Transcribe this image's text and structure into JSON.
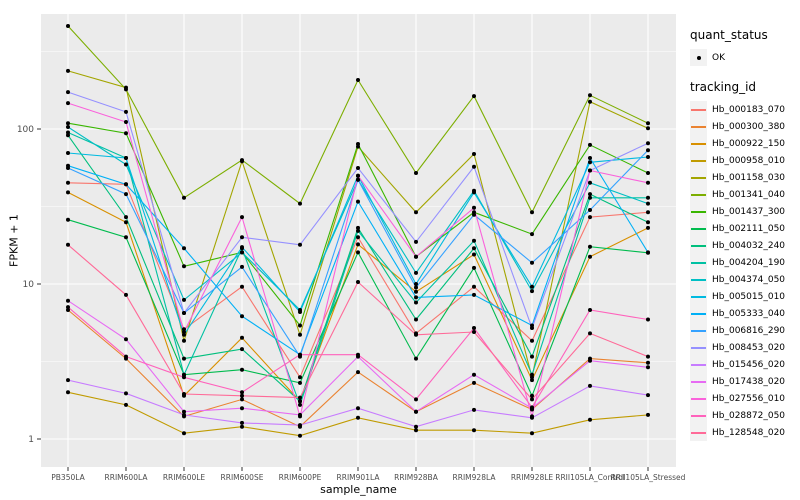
{
  "panel": {
    "background": "#EBEBEB",
    "grid_color": "#FFFFFF",
    "tick_color": "#333333",
    "tick_label_color": "#4D4D4D",
    "point_color": "#000000"
  },
  "chart_data": {
    "type": "line",
    "title": "",
    "xlabel": "sample_name",
    "ylabel": "FPKM + 1",
    "y_scale": "log10",
    "y_ticks": [
      1,
      10,
      100
    ],
    "y_range": [
      0.66,
      550
    ],
    "grid": true,
    "legend_position": "right",
    "categories": [
      "PB350LA",
      "RRIM600LA",
      "RRIM600LE",
      "RRIM600SE",
      "RRIM600PE",
      "RRIM901LA",
      "RRIM928BA",
      "RRIM928LA",
      "RRIM928LE",
      "RRII105LA_Control",
      "RRII105LA_Stressed"
    ],
    "legend": {
      "quant_status_title": "quant_status",
      "quant_status_items": [
        {
          "label": "OK",
          "marker": "point",
          "color": "#000000"
        }
      ],
      "tracking_title": "tracking_id"
    },
    "series": [
      {
        "name": "Hb_000183_070",
        "color": "#F8766D",
        "values": [
          45,
          44,
          5.1,
          9.6,
          2.5,
          20,
          4.8,
          9.6,
          4.3,
          27,
          29
        ]
      },
      {
        "name": "Hb_000300_380",
        "color": "#EA8331",
        "values": [
          6.8,
          3.3,
          1.4,
          1.8,
          1.2,
          2.7,
          1.5,
          2.3,
          1.55,
          3.3,
          3.1
        ]
      },
      {
        "name": "Hb_000922_150",
        "color": "#D89000",
        "values": [
          39,
          25,
          1.9,
          4.5,
          1.75,
          18,
          8.9,
          15.5,
          2.4,
          15,
          23
        ]
      },
      {
        "name": "Hb_000958_010",
        "color": "#C09B00",
        "values": [
          2.0,
          1.66,
          1.09,
          1.2,
          1.05,
          1.37,
          1.14,
          1.14,
          1.09,
          1.33,
          1.43
        ]
      },
      {
        "name": "Hb_001158_030",
        "color": "#A3A500",
        "values": [
          237,
          185,
          4.3,
          62,
          4.7,
          77,
          29,
          69,
          2.5,
          150,
          101
        ]
      },
      {
        "name": "Hb_001341_040",
        "color": "#7CAE00",
        "values": [
          462,
          180,
          36,
          63,
          33,
          207,
          52,
          163,
          29,
          165,
          109
        ]
      },
      {
        "name": "Hb_001437_300",
        "color": "#39B600",
        "values": [
          109,
          94,
          13,
          16,
          5.4,
          80,
          15,
          29,
          21,
          79,
          52
        ]
      },
      {
        "name": "Hb_002111_050",
        "color": "#00BB4E",
        "values": [
          26,
          20,
          2.6,
          2.8,
          2.3,
          16,
          3.3,
          12.7,
          1.9,
          17.4,
          15.9
        ]
      },
      {
        "name": "Hb_004032_240",
        "color": "#00BF7D",
        "values": [
          91,
          27,
          3.3,
          3.8,
          1.75,
          23,
          5.9,
          17,
          3.4,
          38,
          25
        ]
      },
      {
        "name": "Hb_004204_190",
        "color": "#00C1A3",
        "values": [
          95,
          65,
          2.6,
          17,
          1.66,
          22,
          7.6,
          19,
          2.6,
          36,
          36
        ]
      },
      {
        "name": "Hb_004374_050",
        "color": "#00BFC4",
        "values": [
          103,
          59,
          7.9,
          16,
          6.8,
          47,
          11.8,
          40,
          9.0,
          45,
          33
        ]
      },
      {
        "name": "Hb_005015_010",
        "color": "#00BAE0",
        "values": [
          70,
          65,
          4.7,
          17.3,
          6.6,
          50,
          10,
          39,
          9.6,
          61,
          66
        ]
      },
      {
        "name": "Hb_005333_040",
        "color": "#00B0F6",
        "values": [
          58,
          44,
          17,
          6.2,
          3.5,
          34,
          8.2,
          8.5,
          5.4,
          65,
          16
        ]
      },
      {
        "name": "Hb_006816_290",
        "color": "#35A2FF",
        "values": [
          56,
          38,
          6.5,
          12.9,
          3.4,
          47,
          9.5,
          28,
          13.7,
          30,
          73
        ]
      },
      {
        "name": "Hb_008453_020",
        "color": "#9590FF",
        "values": [
          173,
          129,
          6.5,
          20,
          17.9,
          56,
          18.7,
          57,
          5.2,
          54,
          81
        ]
      },
      {
        "name": "Hb_015456_020",
        "color": "#C77CFF",
        "values": [
          2.4,
          1.97,
          1.43,
          1.27,
          1.23,
          1.58,
          1.2,
          1.54,
          1.37,
          2.2,
          1.92
        ]
      },
      {
        "name": "Hb_017438_020",
        "color": "#E76BF3",
        "values": [
          7.8,
          4.4,
          1.5,
          1.58,
          1.43,
          3.4,
          1.5,
          2.6,
          1.58,
          3.2,
          2.9
        ]
      },
      {
        "name": "Hb_027556_010",
        "color": "#FA62DB",
        "values": [
          147,
          111,
          4.9,
          27,
          1.4,
          50,
          15,
          31,
          1.4,
          54,
          45
        ]
      },
      {
        "name": "Hb_028872_050",
        "color": "#FF62BC",
        "values": [
          7.1,
          3.4,
          2.5,
          2.0,
          3.5,
          3.5,
          1.8,
          5.2,
          1.6,
          6.8,
          5.9
        ]
      },
      {
        "name": "Hb_128548_020",
        "color": "#FF6A98",
        "values": [
          17.9,
          8.5,
          1.95,
          1.9,
          1.85,
          10.3,
          4.7,
          4.9,
          1.8,
          4.8,
          3.4
        ]
      }
    ]
  }
}
